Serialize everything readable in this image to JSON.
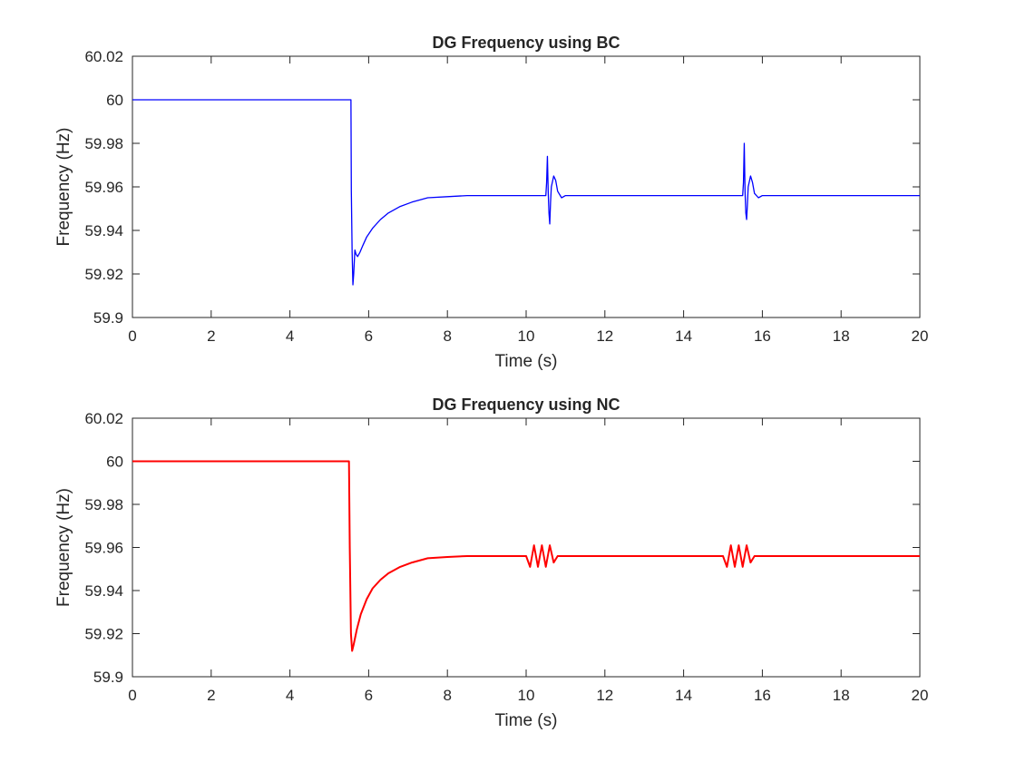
{
  "chart_data": [
    {
      "type": "line",
      "title": "DG Frequency using BC",
      "xlabel": "Time (s)",
      "ylabel": "Frequency (Hz)",
      "xlim": [
        0,
        20
      ],
      "ylim": [
        59.9,
        60.02
      ],
      "xticks": [
        "0",
        "2",
        "4",
        "6",
        "8",
        "10",
        "12",
        "14",
        "16",
        "18",
        "20"
      ],
      "yticks": [
        "59.9",
        "59.92",
        "59.94",
        "59.96",
        "59.98",
        "60",
        "60.02"
      ],
      "grid": false,
      "legend": "none",
      "series": [
        {
          "color": "#0000ff",
          "x": [
            0,
            5.55,
            5.56,
            5.58,
            5.6,
            5.62,
            5.65,
            5.68,
            5.72,
            5.78,
            5.85,
            5.95,
            6.1,
            6.3,
            6.5,
            6.8,
            7.1,
            7.5,
            8.0,
            8.5,
            9.0,
            9.5,
            10.0,
            10.5,
            10.52,
            10.54,
            10.56,
            10.58,
            10.6,
            10.62,
            10.64,
            10.7,
            10.75,
            10.8,
            10.9,
            11.0,
            11.2,
            12.0,
            13.0,
            14.0,
            15.0,
            15.5,
            15.52,
            15.54,
            15.56,
            15.58,
            15.6,
            15.62,
            15.64,
            15.7,
            15.75,
            15.8,
            15.9,
            16.0,
            16.2,
            17.0,
            18.0,
            19.0,
            20.0
          ],
          "y": [
            60.0,
            60.0,
            59.958,
            59.93,
            59.915,
            59.92,
            59.931,
            59.929,
            59.928,
            59.93,
            59.933,
            59.937,
            59.941,
            59.945,
            59.948,
            59.951,
            59.953,
            59.955,
            59.9555,
            59.956,
            59.956,
            59.956,
            59.956,
            59.956,
            59.962,
            59.974,
            59.958,
            59.948,
            59.943,
            59.953,
            59.96,
            59.965,
            59.963,
            59.958,
            59.955,
            59.956,
            59.956,
            59.956,
            59.956,
            59.956,
            59.956,
            59.956,
            59.962,
            59.98,
            59.958,
            59.948,
            59.945,
            59.952,
            59.96,
            59.965,
            59.962,
            59.957,
            59.955,
            59.956,
            59.956,
            59.956,
            59.956,
            59.956,
            59.956
          ]
        }
      ]
    },
    {
      "type": "line",
      "title": "DG Frequency using NC",
      "xlabel": "Time (s)",
      "ylabel": "Frequency (Hz)",
      "xlim": [
        0,
        20
      ],
      "ylim": [
        59.9,
        60.02
      ],
      "xticks": [
        "0",
        "2",
        "4",
        "6",
        "8",
        "10",
        "12",
        "14",
        "16",
        "18",
        "20"
      ],
      "yticks": [
        "59.9",
        "59.92",
        "59.94",
        "59.96",
        "59.98",
        "60",
        "60.02"
      ],
      "grid": false,
      "legend": "none",
      "series": [
        {
          "color": "#ff0000",
          "x": [
            0,
            5.5,
            5.52,
            5.55,
            5.58,
            5.62,
            5.7,
            5.8,
            5.95,
            6.1,
            6.3,
            6.5,
            6.8,
            7.1,
            7.5,
            8.0,
            8.5,
            9.0,
            9.5,
            10.0,
            10.1,
            10.2,
            10.3,
            10.4,
            10.5,
            10.6,
            10.7,
            10.8,
            10.9,
            11.0,
            12.0,
            13.0,
            14.0,
            15.0,
            15.1,
            15.2,
            15.3,
            15.4,
            15.5,
            15.6,
            15.7,
            15.8,
            15.9,
            16.0,
            17.0,
            18.0,
            19.0,
            20.0
          ],
          "y": [
            60.0,
            60.0,
            59.96,
            59.92,
            59.912,
            59.915,
            59.922,
            59.929,
            59.936,
            59.941,
            59.945,
            59.948,
            59.951,
            59.953,
            59.955,
            59.9556,
            59.956,
            59.956,
            59.956,
            59.956,
            59.951,
            59.961,
            59.951,
            59.961,
            59.951,
            59.961,
            59.953,
            59.956,
            59.956,
            59.956,
            59.956,
            59.956,
            59.956,
            59.956,
            59.951,
            59.961,
            59.951,
            59.961,
            59.951,
            59.961,
            59.953,
            59.956,
            59.956,
            59.956,
            59.956,
            59.956,
            59.956,
            59.956
          ]
        }
      ]
    }
  ]
}
